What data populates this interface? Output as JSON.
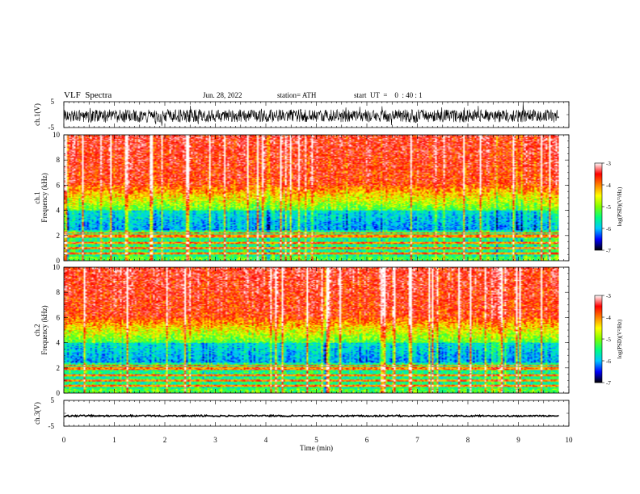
{
  "header": {
    "title": "VLF  Spectra",
    "date": "Jun. 28, 2022",
    "station": "station= ATH",
    "start": "start  UT  =    0  : 40 : 1"
  },
  "chart_data": [
    {
      "type": "line",
      "panel": "ch1-waveform",
      "ylabel": "ch.1(V)",
      "ylim": [
        -5,
        5
      ],
      "yticks": [
        "5",
        "-5"
      ],
      "xlim": [
        0,
        10
      ],
      "x_data_end": 9.8,
      "description_values": {
        "center": -0.5,
        "amplitude": 2.5
      }
    },
    {
      "type": "heatmap",
      "panel": "ch1-spectrogram",
      "ylabel_lines": [
        "ch.1",
        "Frequency (kHz)"
      ],
      "ylim": [
        0,
        10
      ],
      "yticks": [
        "0",
        "2",
        "4",
        "6",
        "8",
        "10"
      ],
      "xlim": [
        0,
        10
      ],
      "x_data_end": 9.8,
      "colorbar": {
        "label": "log(PSD)(V²/Hz)",
        "range": [
          -7,
          -3
        ],
        "ticks": [
          "-3",
          "-4",
          "-5",
          "-6",
          "-7"
        ],
        "colors": [
          "#000000",
          "#0000ff",
          "#00c8ff",
          "#00ff80",
          "#80ff00",
          "#ffff00",
          "#ff8000",
          "#ff0000",
          "#ffffff"
        ]
      },
      "bands_khz": [
        0.6,
        1.0,
        1.4,
        1.9,
        2.05,
        2.2
      ]
    },
    {
      "type": "heatmap",
      "panel": "ch2-spectrogram",
      "ylabel_lines": [
        "ch.2",
        "Frequency (kHz)"
      ],
      "ylim": [
        0,
        10
      ],
      "yticks": [
        "0",
        "2",
        "4",
        "6",
        "8",
        "10"
      ],
      "xlim": [
        0,
        10
      ],
      "x_data_end": 9.8,
      "colorbar": {
        "label": "log(PSD)(V²/Hz)",
        "range": [
          -7,
          -3
        ],
        "ticks": [
          "-3",
          "-4",
          "-5",
          "-6",
          "-7"
        ],
        "colors": [
          "#000000",
          "#0000ff",
          "#00c8ff",
          "#00ff80",
          "#80ff00",
          "#ffff00",
          "#ff8000",
          "#ff0000",
          "#ffffff"
        ]
      },
      "bands_khz": [
        0.6,
        1.0,
        1.4,
        1.9,
        2.05,
        2.2
      ]
    },
    {
      "type": "line",
      "panel": "ch3-waveform",
      "ylabel": "ch.3(V)",
      "ylim": [
        -5,
        5
      ],
      "yticks": [
        "5",
        "-5"
      ],
      "xlim": [
        0,
        10
      ],
      "x_data_end": 9.8,
      "xlabel": "Time  (min)",
      "xticks": [
        "0",
        "1",
        "2",
        "3",
        "4",
        "5",
        "6",
        "7",
        "8",
        "9",
        "10"
      ],
      "description_values": {
        "center": -1.0,
        "amplitude": 0.3
      }
    }
  ]
}
